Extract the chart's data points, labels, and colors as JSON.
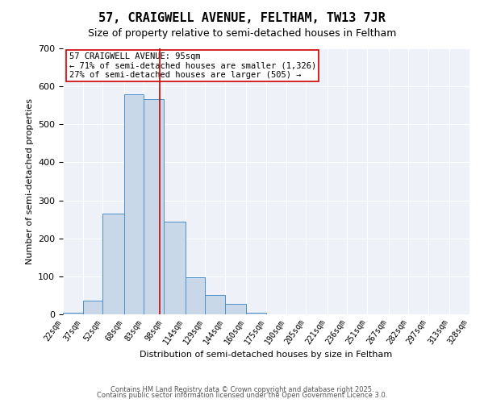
{
  "title_line1": "57, CRAIGWELL AVENUE, FELTHAM, TW13 7JR",
  "title_line2": "Size of property relative to semi-detached houses in Feltham",
  "xlabel": "Distribution of semi-detached houses by size in Feltham",
  "ylabel": "Number of semi-detached properties",
  "bin_labels": [
    "22sqm",
    "37sqm",
    "52sqm",
    "68sqm",
    "83sqm",
    "98sqm",
    "114sqm",
    "129sqm",
    "144sqm",
    "160sqm",
    "175sqm",
    "190sqm",
    "205sqm",
    "221sqm",
    "236sqm",
    "251sqm",
    "267sqm",
    "282sqm",
    "297sqm",
    "313sqm",
    "328sqm"
  ],
  "bin_edges": [
    22,
    37,
    52,
    68,
    83,
    98,
    114,
    129,
    144,
    160,
    175,
    190,
    205,
    221,
    236,
    251,
    267,
    282,
    297,
    313,
    328
  ],
  "bar_heights": [
    5,
    37,
    265,
    580,
    567,
    243,
    97,
    50,
    27,
    5,
    0,
    0,
    0,
    0,
    0,
    0,
    0,
    0,
    0,
    0
  ],
  "bar_color": "#c8d8e8",
  "bar_edge_color": "#4a90c8",
  "red_line_x": 95,
  "annotation_title": "57 CRAIGWELL AVENUE: 95sqm",
  "annotation_line2": "← 71% of semi-detached houses are smaller (1,326)",
  "annotation_line3": "27% of semi-detached houses are larger (505) →",
  "annotation_box_color": "#ffffff",
  "annotation_box_edge": "#cc0000",
  "red_line_color": "#cc0000",
  "ylim": [
    0,
    700
  ],
  "yticks": [
    0,
    100,
    200,
    300,
    400,
    500,
    600,
    700
  ],
  "bg_color": "#eef2f8",
  "fig_bg_color": "#ffffff",
  "footer_line1": "Contains HM Land Registry data © Crown copyright and database right 2025.",
  "footer_line2": "Contains public sector information licensed under the Open Government Licence 3.0.",
  "title_fontsize": 11,
  "subtitle_fontsize": 9,
  "axis_label_fontsize": 8,
  "tick_fontsize": 7,
  "annotation_fontsize": 7.5,
  "footer_fontsize": 6
}
